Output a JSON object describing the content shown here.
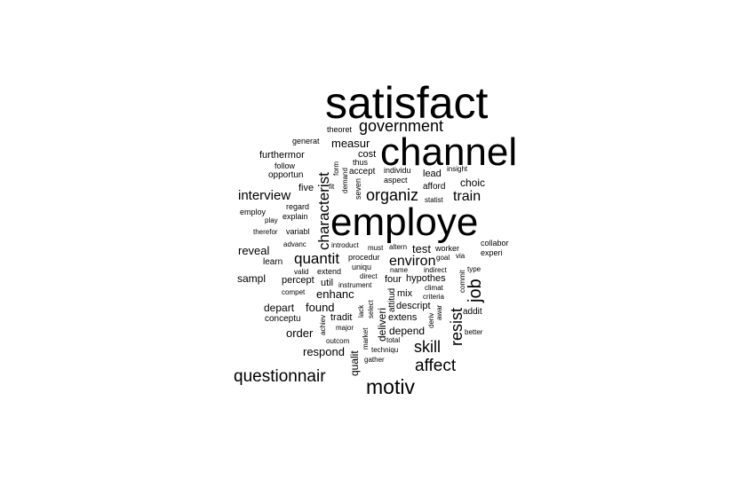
{
  "word_cloud": {
    "text_color": "#000000",
    "background_color": "#ffffff",
    "words": [
      "satisfact",
      "channel",
      "employe",
      "government",
      "characterist",
      "organiz",
      "quantit",
      "environ",
      "job",
      "resist",
      "skill",
      "affect",
      "motiv",
      "questionnair",
      "interview",
      "train",
      "measur",
      "reveal",
      "enhanc",
      "found",
      "sampl",
      "depart",
      "order",
      "respond",
      "tradit",
      "depend",
      "test",
      "choic",
      "cost",
      "furthermor",
      "five",
      "percept",
      "util",
      "conceptu",
      "four",
      "hypothes",
      "descript",
      "deliveri",
      "attitud",
      "qualit",
      "mix",
      "extens",
      "lead",
      "afford",
      "follow",
      "generat",
      "theoret",
      "opportun",
      "accept",
      "individu",
      "aspect",
      "statist",
      "insight",
      "thus",
      "form",
      "demand",
      "seven",
      "fit",
      "regard",
      "explain",
      "employ",
      "play",
      "therefor",
      "variabl",
      "advanc",
      "introduct",
      "must",
      "altern",
      "worker",
      "goal",
      "via",
      "collabor",
      "experi",
      "learn",
      "procedur",
      "valid",
      "extend",
      "uniqu",
      "name",
      "indirect",
      "type",
      "compet",
      "direct",
      "instrument",
      "climat",
      "criteria",
      "commit",
      "addit",
      "lack",
      "select",
      "deriv",
      "awar",
      "achiev",
      "major",
      "market",
      "outcom",
      "total",
      "techniqu",
      "gather",
      "better"
    ]
  }
}
